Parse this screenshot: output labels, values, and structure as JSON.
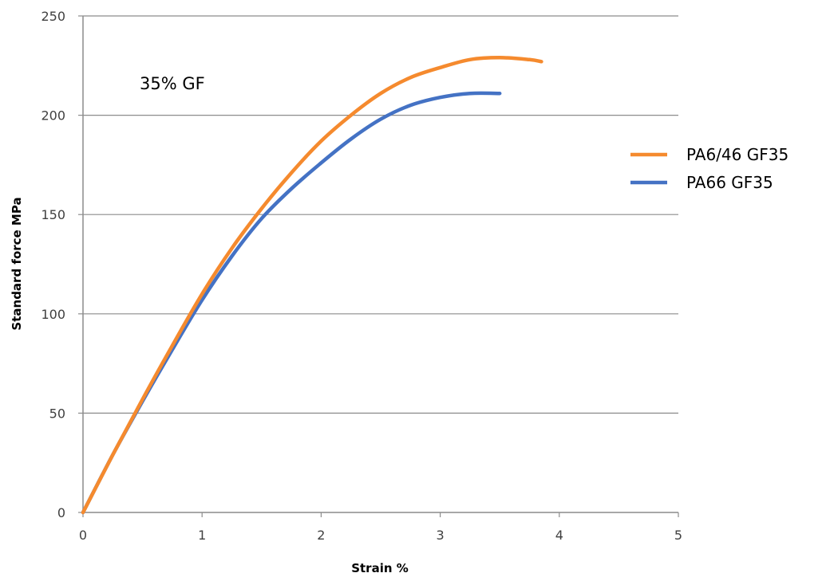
{
  "chart_data": {
    "type": "line",
    "title": "",
    "xlabel": "Strain %",
    "ylabel": "Standard force MPa",
    "xlim": [
      0,
      5
    ],
    "ylim": [
      0,
      250
    ],
    "xticks": [
      0,
      1,
      2,
      3,
      4,
      5
    ],
    "yticks": [
      0,
      50,
      100,
      150,
      200,
      250
    ],
    "xtick_labels": [
      "0",
      "1",
      "2",
      "3",
      "4",
      "5"
    ],
    "ytick_labels": [
      "0",
      "50",
      "100",
      "150",
      "200",
      "250"
    ],
    "grid": "horizontal",
    "legend_position": "right",
    "annotation": "35% GF",
    "series": [
      {
        "name": "PA6/46 GF35",
        "color": "#f58a2e",
        "x": [
          0,
          0.25,
          0.5,
          0.75,
          1.0,
          1.25,
          1.5,
          1.75,
          2.0,
          2.25,
          2.5,
          2.75,
          3.0,
          3.25,
          3.5,
          3.75,
          3.85
        ],
        "y": [
          0,
          29,
          57,
          84,
          110,
          133,
          153,
          171,
          187,
          200,
          211,
          219,
          224,
          228,
          229,
          228,
          227
        ]
      },
      {
        "name": "PA66 GF35",
        "color": "#4472c4",
        "x": [
          0,
          0.25,
          0.5,
          0.75,
          1.0,
          1.25,
          1.5,
          1.75,
          2.0,
          2.25,
          2.5,
          2.75,
          3.0,
          3.25,
          3.5
        ],
        "y": [
          0,
          29,
          56,
          82,
          107,
          129,
          148,
          163,
          176,
          188,
          198,
          205,
          209,
          211,
          211
        ]
      }
    ]
  }
}
